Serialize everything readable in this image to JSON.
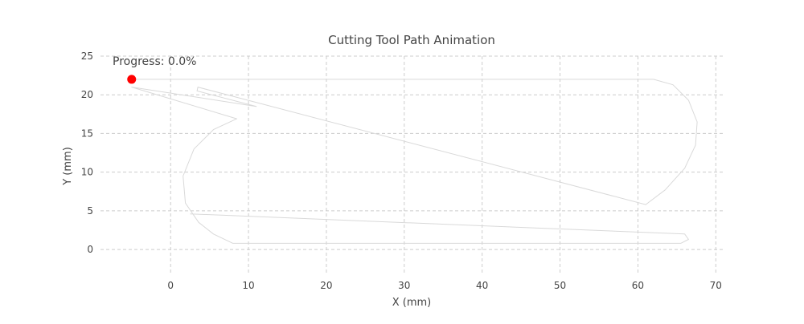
{
  "chart_data": {
    "type": "line",
    "title": "Cutting Tool Path Animation",
    "xlabel": "X (mm)",
    "ylabel": "Y (mm)",
    "xlim": [
      -9,
      71
    ],
    "ylim": [
      -3,
      25
    ],
    "xticks": [
      0,
      10,
      20,
      30,
      40,
      50,
      60,
      70
    ],
    "yticks": [
      0,
      5,
      10,
      15,
      20,
      25
    ],
    "grid": true,
    "annotation": "Progress: 0.0%",
    "colors": {
      "path": "#d9d9d9",
      "marker": "#ff0000",
      "grid": "#cccccc",
      "text": "#444444"
    },
    "series": [
      {
        "x": [
          -5,
          3,
          62,
          64.5,
          66.5,
          67.6,
          67.4,
          66,
          63.5,
          61,
          3.5,
          3.4,
          11,
          -5,
          8.5,
          5.5,
          3,
          1.6,
          1.9,
          3.6,
          5.5,
          8,
          65.5,
          66.5,
          66,
          2.5
        ],
        "y": [
          22,
          22,
          22,
          21.3,
          19.3,
          16.5,
          13.5,
          10.5,
          7.7,
          5.8,
          21,
          20.5,
          18.5,
          21,
          16.9,
          15.5,
          13,
          9.5,
          6,
          3.5,
          2,
          0.8,
          0.8,
          1.3,
          2,
          4.6
        ]
      }
    ],
    "marker": {
      "x": -5,
      "y": 22
    }
  }
}
